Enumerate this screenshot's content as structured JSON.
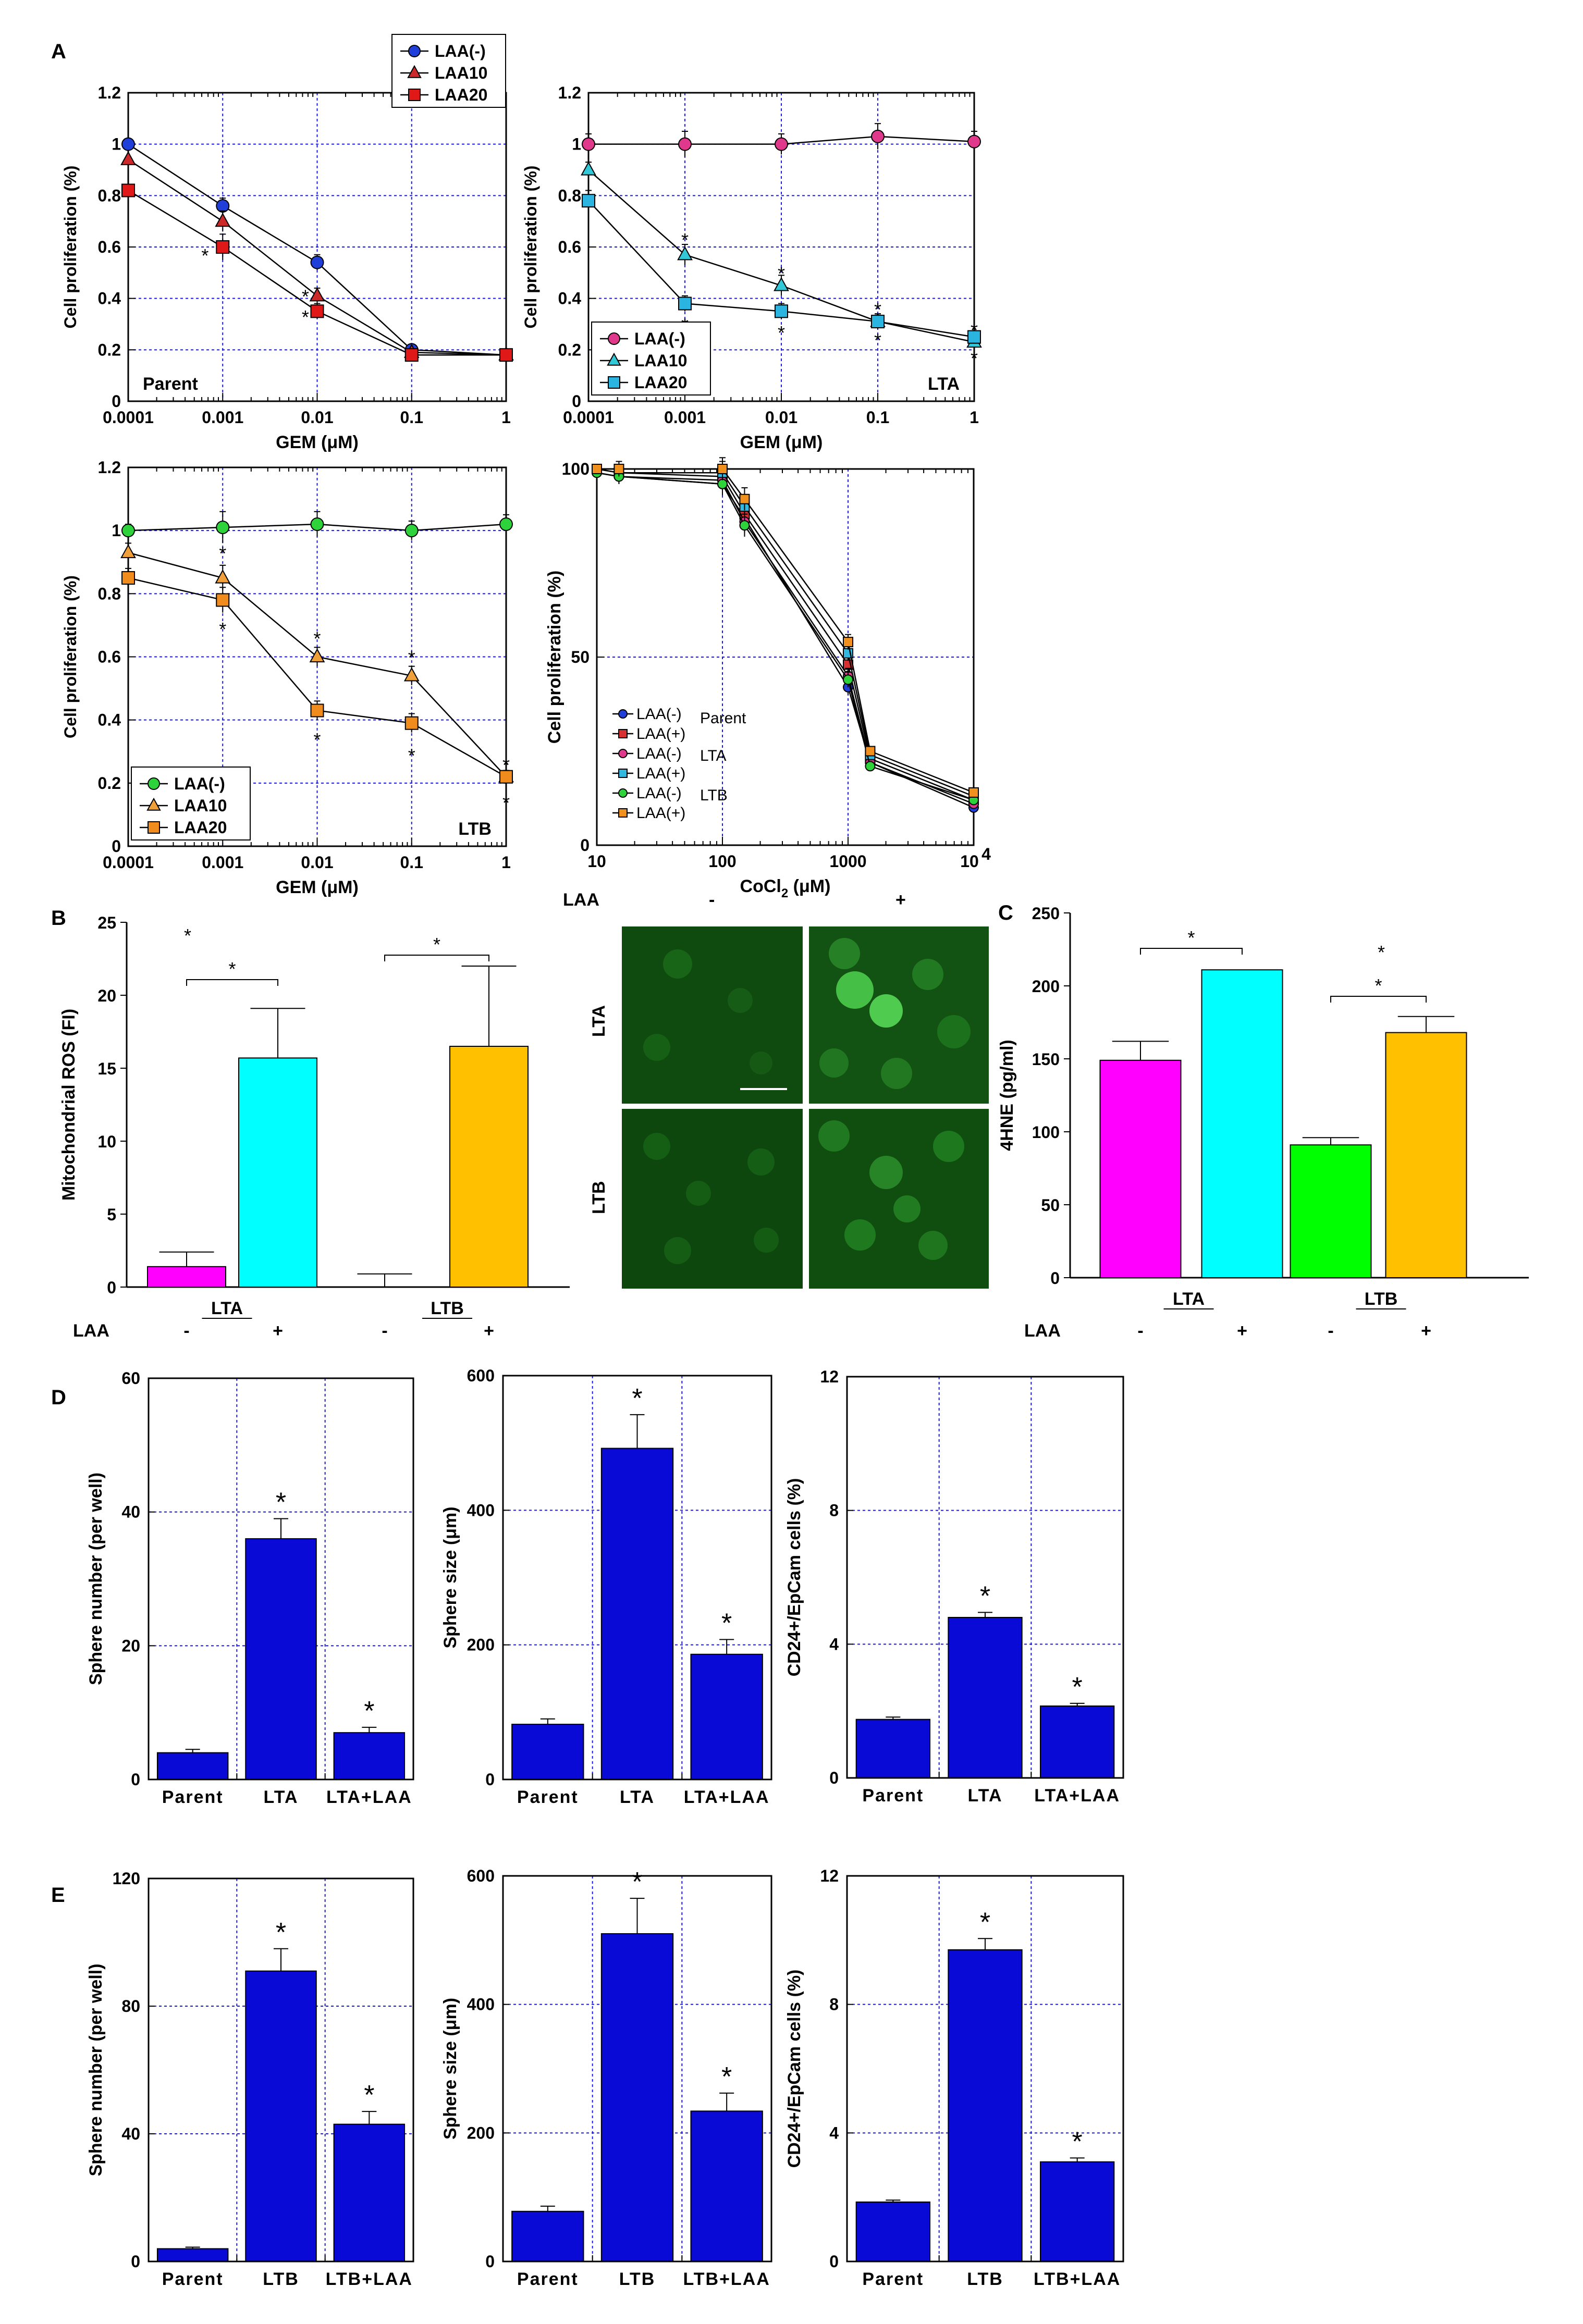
{
  "panel_labels": {
    "A": "A",
    "B": "B",
    "C": "C",
    "D": "D",
    "E": "E"
  },
  "micro": {
    "laa_label": "LAA",
    "minus": "-",
    "plus": "+",
    "row1": "LTA",
    "row2": "LTB"
  },
  "colors": {
    "grid": "#1a1ad8",
    "micro_bg": "#0f4a0f",
    "blue_bar": "#0a0ad6"
  },
  "chart_data": [
    {
      "id": "A1",
      "type": "line",
      "xscale": "log",
      "title": "",
      "corner_label": "Parent",
      "xlabel": "GEM (μM)",
      "ylabel": "Cell proliferation (%)",
      "xlim": [
        0.0001,
        1
      ],
      "ylim": [
        0,
        1.2
      ],
      "xticks": [
        0.0001,
        0.001,
        0.01,
        0.1,
        1
      ],
      "xtick_labels": [
        "0.0001",
        "0.001",
        "0.01",
        "0.1",
        "1"
      ],
      "yticks": [
        0,
        0.2,
        0.4,
        0.6,
        0.8,
        1,
        1.2
      ],
      "ytick_labels": [
        "0",
        "0.2",
        "0.4",
        "0.6",
        "0.8",
        "1",
        "1.2"
      ],
      "legend_position": "top-right",
      "x": [
        0.0001,
        0.001,
        0.01,
        0.1,
        1
      ],
      "series": [
        {
          "name": "LAA(-)",
          "color": "#1f3fd8",
          "marker": "circle",
          "values": [
            1.0,
            0.76,
            0.54,
            0.2,
            0.18
          ],
          "err": [
            0,
            0.03,
            0.03,
            0.01,
            0.01
          ]
        },
        {
          "name": "LAA10",
          "color": "#cc2a2a",
          "marker": "triangle",
          "values": [
            0.94,
            0.7,
            0.41,
            0.19,
            0.18
          ],
          "err": [
            0,
            0.04,
            0.03,
            0.01,
            0.01
          ]
        },
        {
          "name": "LAA20",
          "color": "#e01818",
          "marker": "square",
          "values": [
            0.82,
            0.6,
            0.35,
            0.18,
            0.18
          ],
          "err": [
            0,
            0.05,
            0.03,
            0.01,
            0.01
          ]
        }
      ],
      "annotations": [
        {
          "text": "*",
          "x": 0.00065,
          "y": 0.57
        },
        {
          "text": "*",
          "x": 0.0075,
          "y": 0.41
        },
        {
          "text": "*",
          "x": 0.0075,
          "y": 0.33
        }
      ]
    },
    {
      "id": "A2",
      "type": "line",
      "xscale": "log",
      "title": "",
      "corner_label": "LTA",
      "xlabel": "GEM (μM)",
      "ylabel": "Cell proliferation (%)",
      "xlim": [
        0.0001,
        1
      ],
      "ylim": [
        0,
        1.2
      ],
      "xticks": [
        0.0001,
        0.001,
        0.01,
        0.1,
        1
      ],
      "xtick_labels": [
        "0.0001",
        "0.001",
        "0.01",
        "0.1",
        "1"
      ],
      "yticks": [
        0,
        0.2,
        0.4,
        0.6,
        0.8,
        1,
        1.2
      ],
      "ytick_labels": [
        "0",
        "0.2",
        "0.4",
        "0.6",
        "0.8",
        "1",
        "1.2"
      ],
      "legend_position": "bottom-left",
      "x": [
        0.0001,
        0.001,
        0.01,
        0.1,
        1
      ],
      "series": [
        {
          "name": "LAA(-)",
          "color": "#e0398c",
          "marker": "circle",
          "values": [
            1.0,
            1.0,
            1.0,
            1.03,
            1.01
          ],
          "err": [
            0.04,
            0.05,
            0.04,
            0.05,
            0.04
          ]
        },
        {
          "name": "LAA10",
          "color": "#33c8d8",
          "marker": "triangle",
          "values": [
            0.9,
            0.57,
            0.45,
            0.31,
            0.23
          ],
          "err": [
            0.03,
            0.04,
            0.04,
            0.03,
            0.02
          ]
        },
        {
          "name": "LAA20",
          "color": "#2cb4e0",
          "marker": "square",
          "values": [
            0.78,
            0.38,
            0.35,
            0.31,
            0.25
          ],
          "err": [
            0.04,
            0.03,
            0.03,
            0.03,
            0.02
          ]
        }
      ],
      "annotations": [
        {
          "text": "*",
          "x": 0.001,
          "y": 0.63
        },
        {
          "text": "*",
          "x": 0.01,
          "y": 0.5
        },
        {
          "text": "*",
          "x": 0.1,
          "y": 0.36
        },
        {
          "text": "*",
          "x": 1,
          "y": 0.28
        },
        {
          "text": "*",
          "x": 0.001,
          "y": 0.3
        },
        {
          "text": "*",
          "x": 0.01,
          "y": 0.27
        },
        {
          "text": "*",
          "x": 0.1,
          "y": 0.24
        },
        {
          "text": "*",
          "x": 1,
          "y": 0.17
        }
      ]
    },
    {
      "id": "A3",
      "type": "line",
      "xscale": "log",
      "title": "",
      "corner_label": "LTB",
      "xlabel": "GEM (μM)",
      "ylabel": "Cell proliferation (%)",
      "xlim": [
        0.0001,
        1
      ],
      "ylim": [
        0,
        1.2
      ],
      "xticks": [
        0.0001,
        0.001,
        0.01,
        0.1,
        1
      ],
      "xtick_labels": [
        "0.0001",
        "0.001",
        "0.01",
        "0.1",
        "1"
      ],
      "yticks": [
        0,
        0.2,
        0.4,
        0.6,
        0.8,
        1,
        1.2
      ],
      "ytick_labels": [
        "0",
        "0.2",
        "0.4",
        "0.6",
        "0.8",
        "1",
        "1.2"
      ],
      "legend_position": "bottom-left",
      "x": [
        0.0001,
        0.001,
        0.01,
        0.1,
        1
      ],
      "series": [
        {
          "name": "LAA(-)",
          "color": "#2ed23a",
          "marker": "circle",
          "values": [
            1.0,
            1.01,
            1.02,
            1.0,
            1.02
          ],
          "err": [
            0.02,
            0.05,
            0.04,
            0.03,
            0.03
          ]
        },
        {
          "name": "LAA10",
          "color": "#f0a03a",
          "marker": "triangle",
          "values": [
            0.93,
            0.85,
            0.6,
            0.54,
            0.22
          ],
          "err": [
            0.03,
            0.04,
            0.03,
            0.03,
            0.02
          ]
        },
        {
          "name": "LAA20",
          "color": "#f08c1e",
          "marker": "square",
          "values": [
            0.85,
            0.78,
            0.43,
            0.39,
            0.22
          ],
          "err": [
            0.03,
            0.04,
            0.03,
            0.03,
            0.02
          ]
        }
      ],
      "annotations": [
        {
          "text": "*",
          "x": 0.001,
          "y": 0.93
        },
        {
          "text": "*",
          "x": 0.01,
          "y": 0.66
        },
        {
          "text": "*",
          "x": 0.1,
          "y": 0.6
        },
        {
          "text": "*",
          "x": 1,
          "y": 0.26
        },
        {
          "text": "*",
          "x": 0.001,
          "y": 0.69
        },
        {
          "text": "*",
          "x": 0.01,
          "y": 0.34
        },
        {
          "text": "*",
          "x": 0.1,
          "y": 0.29
        },
        {
          "text": "*",
          "x": 1,
          "y": 0.14
        }
      ]
    },
    {
      "id": "A4",
      "type": "line",
      "xscale": "log",
      "title": "",
      "corner_label": "",
      "xlabel": "CoCl2 (μM)",
      "ylabel": "Cell proliferation (%)",
      "xlim": [
        10,
        10000
      ],
      "ylim": [
        0,
        100
      ],
      "xticks": [
        10,
        100,
        1000,
        10000
      ],
      "xtick_labels": [
        "10",
        "100",
        "1000",
        "10⁴"
      ],
      "yticks": [
        0,
        50,
        100
      ],
      "ytick_labels": [
        "0",
        "50",
        "100"
      ],
      "legend_position": "center",
      "x": [
        10,
        15,
        100,
        150,
        1000,
        1500,
        10000
      ],
      "series": [
        {
          "name": "LAA(-)",
          "group": "Parent",
          "color": "#1f3fd8",
          "marker": "circle",
          "values": [
            99,
            98,
            96,
            87,
            42,
            22,
            10
          ],
          "err": [
            1,
            2,
            3,
            3,
            2,
            1,
            1
          ]
        },
        {
          "name": "LAA(+)",
          "group": "",
          "color": "#d83030",
          "marker": "square",
          "values": [
            100,
            99,
            98,
            88,
            48,
            23,
            12
          ],
          "err": [
            1,
            2,
            3,
            3,
            2,
            1,
            1
          ]
        },
        {
          "name": "LAA(-)",
          "group": "LTA",
          "color": "#e0398c",
          "marker": "circle",
          "values": [
            99,
            98,
            97,
            86,
            45,
            22,
            11
          ],
          "err": [
            1,
            2,
            3,
            3,
            2,
            1,
            1
          ]
        },
        {
          "name": "LAA(+)",
          "group": "",
          "color": "#33b8e0",
          "marker": "square",
          "values": [
            100,
            99,
            99,
            90,
            51,
            24,
            13
          ],
          "err": [
            1,
            2,
            3,
            3,
            2,
            1,
            1
          ]
        },
        {
          "name": "LAA(-)",
          "group": "LTB",
          "color": "#2ed23a",
          "marker": "circle",
          "values": [
            99,
            98,
            96,
            85,
            44,
            21,
            12
          ],
          "err": [
            1,
            2,
            3,
            3,
            2,
            1,
            1
          ]
        },
        {
          "name": "LAA(+)",
          "group": "",
          "color": "#f0901e",
          "marker": "square",
          "values": [
            100,
            100,
            100,
            92,
            54,
            25,
            14
          ],
          "err": [
            1,
            2,
            3,
            3,
            2,
            1,
            1
          ]
        }
      ]
    },
    {
      "id": "B",
      "type": "bar",
      "title": "",
      "xlabel": "",
      "ylabel": "Mitochondrial ROS (FI)",
      "ylim": [
        0,
        25
      ],
      "yticks": [
        0,
        5,
        10,
        15,
        20,
        25
      ],
      "ytick_labels": [
        "0",
        "5",
        "10",
        "15",
        "20",
        "25"
      ],
      "groups": [
        "LTA",
        "LTB"
      ],
      "bars": [
        {
          "group": "LTA",
          "laa": "-",
          "value": 1.4,
          "err": 1.0,
          "color": "#ff00ff"
        },
        {
          "group": "LTA",
          "laa": "+",
          "value": 15.7,
          "err": 3.4,
          "color": "#00ffff"
        },
        {
          "group": "LTB",
          "laa": "-",
          "value": 0.0,
          "err": 0.9,
          "color": "#00ff00"
        },
        {
          "group": "LTB",
          "laa": "+",
          "value": 16.5,
          "err": 5.5,
          "color": "#ffc000"
        }
      ],
      "laa_row": {
        "label": "LAA",
        "marks": [
          "-",
          "+",
          "-",
          "+"
        ]
      },
      "brackets": [
        {
          "group": "LTA",
          "text": "*"
        },
        {
          "group": "LTB",
          "text": "*"
        }
      ],
      "extra_stars": [
        "*"
      ]
    },
    {
      "id": "C",
      "type": "bar",
      "title": "",
      "xlabel": "",
      "ylabel": "4HNE (pg/ml)",
      "ylim": [
        0,
        250
      ],
      "yticks": [
        0,
        50,
        100,
        150,
        200,
        250
      ],
      "ytick_labels": [
        "0",
        "50",
        "100",
        "150",
        "200",
        "250"
      ],
      "groups": [
        "LTA",
        "LTB"
      ],
      "bars": [
        {
          "group": "LTA",
          "laa": "-",
          "value": 149,
          "err": 13,
          "color": "#ff00ff"
        },
        {
          "group": "LTA",
          "laa": "+",
          "value": 211,
          "err": 0,
          "color": "#00ffff"
        },
        {
          "group": "LTB",
          "laa": "-",
          "value": 91,
          "err": 5,
          "color": "#00ff00"
        },
        {
          "group": "LTB",
          "laa": "+",
          "value": 168,
          "err": 11,
          "color": "#ffc000"
        }
      ],
      "laa_row": {
        "label": "LAA",
        "marks": [
          "-",
          "+",
          "-",
          "+"
        ]
      },
      "brackets": [
        {
          "group": "LTA",
          "text": "*"
        },
        {
          "group": "LTB",
          "text": "*"
        }
      ],
      "extra_stars": [
        "*"
      ]
    },
    {
      "id": "D1",
      "type": "bar",
      "title": "",
      "xlabel": "",
      "ylabel": "Sphere number (per well)",
      "ylim": [
        0,
        60
      ],
      "yticks": [
        0,
        20,
        40,
        60
      ],
      "ytick_labels": [
        "0",
        "20",
        "40",
        "60"
      ],
      "categories": [
        "Parent",
        "LTA",
        "LTA+LAA"
      ],
      "values": [
        4,
        36,
        7
      ],
      "err": [
        0.5,
        3,
        0.8
      ],
      "stars": [
        "",
        "*",
        "*"
      ]
    },
    {
      "id": "D2",
      "type": "bar",
      "title": "",
      "xlabel": "",
      "ylabel": "Sphere size (μm)",
      "ylim": [
        0,
        600
      ],
      "yticks": [
        0,
        200,
        400,
        600
      ],
      "ytick_labels": [
        "0",
        "200",
        "400",
        "600"
      ],
      "categories": [
        "Parent",
        "LTA",
        "LTA+LAA"
      ],
      "values": [
        82,
        492,
        186
      ],
      "err": [
        8,
        50,
        22
      ],
      "stars": [
        "",
        "*",
        "*"
      ]
    },
    {
      "id": "D3",
      "type": "bar",
      "title": "",
      "xlabel": "",
      "ylabel": "CD24+/EpCam cells (%)",
      "ylim": [
        0,
        12
      ],
      "yticks": [
        0,
        4,
        8,
        12
      ],
      "ytick_labels": [
        "0",
        "4",
        "8",
        "12"
      ],
      "categories": [
        "Parent",
        "LTA",
        "LTA+LAA"
      ],
      "values": [
        1.75,
        4.8,
        2.15
      ],
      "err": [
        0.07,
        0.15,
        0.08
      ],
      "stars": [
        "",
        "*",
        "*"
      ]
    },
    {
      "id": "E1",
      "type": "bar",
      "title": "",
      "xlabel": "",
      "ylabel": "Sphere number (per well)",
      "ylim": [
        0,
        120
      ],
      "yticks": [
        0,
        40,
        80,
        120
      ],
      "ytick_labels": [
        "0",
        "40",
        "80",
        "120"
      ],
      "categories": [
        "Parent",
        "LTB",
        "LTB+LAA"
      ],
      "values": [
        4,
        91,
        43
      ],
      "err": [
        0.5,
        7,
        4
      ],
      "stars": [
        "",
        "*",
        "*"
      ]
    },
    {
      "id": "E2",
      "type": "bar",
      "title": "",
      "xlabel": "",
      "ylabel": "Sphere size (μm)",
      "ylim": [
        0,
        600
      ],
      "yticks": [
        0,
        200,
        400,
        600
      ],
      "ytick_labels": [
        "0",
        "200",
        "400",
        "600"
      ],
      "categories": [
        "Parent",
        "LTB",
        "LTB+LAA"
      ],
      "values": [
        78,
        510,
        234
      ],
      "err": [
        8,
        55,
        28
      ],
      "stars": [
        "",
        "*",
        "*"
      ]
    },
    {
      "id": "E3",
      "type": "bar",
      "title": "",
      "xlabel": "",
      "ylabel": "CD24+/EpCam cells (%)",
      "ylim": [
        0,
        12
      ],
      "yticks": [
        0,
        4,
        8,
        12
      ],
      "ytick_labels": [
        "0",
        "4",
        "8",
        "12"
      ],
      "categories": [
        "Parent",
        "LTB",
        "LTB+LAA"
      ],
      "values": [
        1.85,
        9.7,
        3.1
      ],
      "err": [
        0.06,
        0.35,
        0.12
      ],
      "stars": [
        "",
        "*",
        "*"
      ]
    }
  ]
}
